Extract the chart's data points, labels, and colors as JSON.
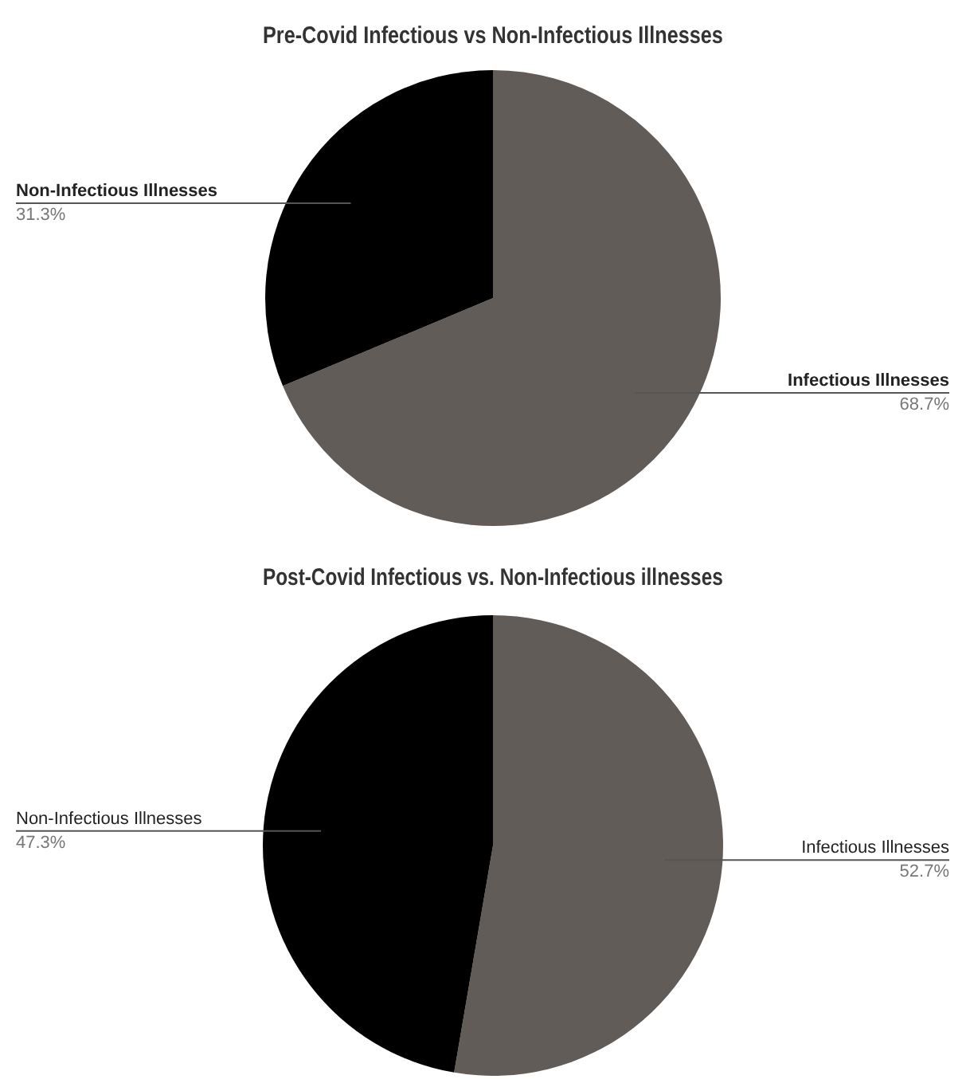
{
  "chart_data": [
    {
      "type": "pie",
      "title": "Pre-Covid Infectious vs Non-Infectious Illnesses",
      "categories": [
        "Infectious Illnesses",
        "Non-Infectious Illnesses"
      ],
      "values": [
        68.7,
        31.3
      ],
      "colors": [
        "#625c58",
        "#000000"
      ],
      "value_labels": [
        "68.7%",
        "31.3%"
      ],
      "legend": false
    },
    {
      "type": "pie",
      "title": "Post-Covid Infectious vs. Non-Infectious illnesses",
      "categories": [
        "Infectious Illnesses",
        "Non-Infectious Illnesses"
      ],
      "values": [
        52.7,
        47.3
      ],
      "colors": [
        "#625c58",
        "#000000"
      ],
      "value_labels": [
        "52.7%",
        "47.3%"
      ],
      "legend": false
    }
  ]
}
